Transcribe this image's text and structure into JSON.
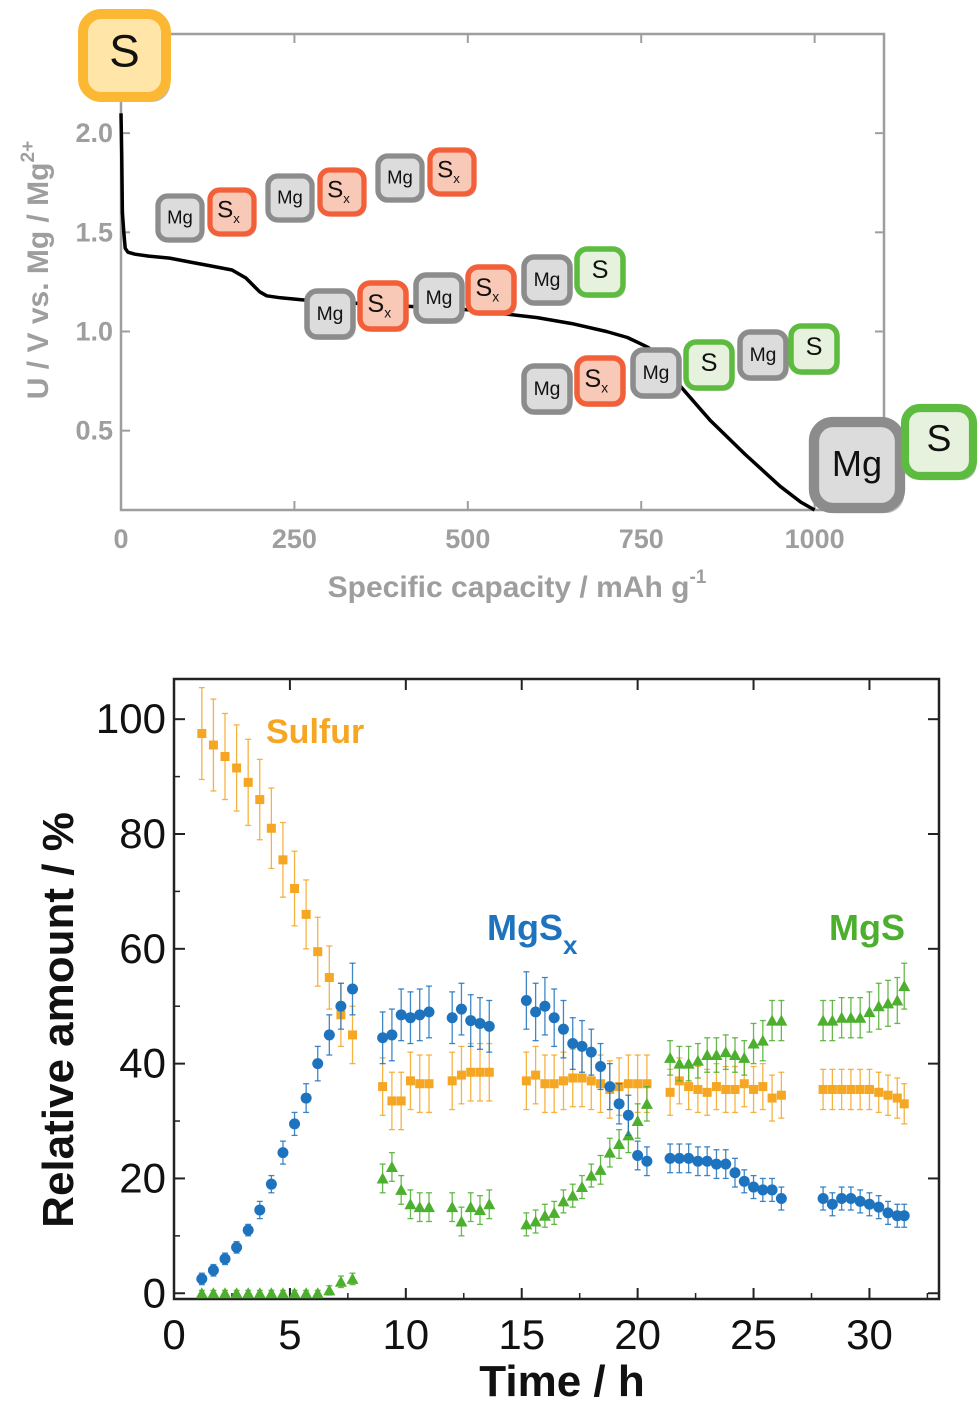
{
  "colors": {
    "sulfur": "#F5A623",
    "mgsx": "#1E73BE",
    "mgs": "#4CAF2E",
    "mg_tile": "#9A9A9A",
    "sx_tile": "#F2603A",
    "s_tile_green": "#5DBB3F",
    "s_tile_orange": "#FDB833",
    "axis_grey": "#9E9E9E"
  },
  "icons": {
    "start_S": "S",
    "end_Mg": "Mg",
    "end_S": "S",
    "mg": "Mg",
    "s": "S",
    "sx_main": "S",
    "sx_sub": "x"
  },
  "chart_data": [
    {
      "type": "line",
      "xlabel_main": "Specific capacity / mAh g",
      "xlabel_sup": "-1",
      "ylabel_main": "U / V vs. Mg / Mg",
      "ylabel_sup": "2+",
      "xlim": [
        0,
        1100
      ],
      "ylim": [
        0.1,
        2.5
      ],
      "xticks": [
        "0",
        "250",
        "500",
        "750",
        "1000"
      ],
      "yticks": [
        "0.5",
        "1.0",
        "1.5",
        "2.0"
      ],
      "series": [
        {
          "x": [
            0,
            1,
            2,
            4,
            6,
            10,
            20,
            40,
            70,
            100,
            130,
            160,
            180,
            200,
            210,
            230,
            260,
            300,
            350,
            400,
            450,
            500,
            550,
            600,
            650,
            700,
            730,
            760,
            780,
            800,
            850,
            900,
            950,
            980,
            1000
          ],
          "y": [
            2.1,
            1.9,
            1.6,
            1.5,
            1.42,
            1.4,
            1.39,
            1.38,
            1.37,
            1.35,
            1.33,
            1.31,
            1.27,
            1.2,
            1.18,
            1.17,
            1.16,
            1.15,
            1.14,
            1.13,
            1.12,
            1.11,
            1.09,
            1.07,
            1.04,
            1.0,
            0.97,
            0.92,
            0.85,
            0.75,
            0.55,
            0.38,
            0.22,
            0.14,
            0.1
          ]
        }
      ]
    },
    {
      "type": "scatter",
      "xlabel": "Time / h",
      "ylabel": "Relative amount / %",
      "xlim": [
        0,
        33
      ],
      "ylim": [
        -1,
        107
      ],
      "xticks": [
        "0",
        "5",
        "10",
        "15",
        "20",
        "25",
        "30"
      ],
      "yticks": [
        "0",
        "20",
        "40",
        "60",
        "80",
        "100"
      ],
      "series": [
        {
          "name": "Sulfur",
          "x": [
            1.2,
            1.7,
            2.2,
            2.7,
            3.2,
            3.7,
            4.2,
            4.7,
            5.2,
            5.7,
            6.2,
            6.7,
            7.2,
            7.7,
            9.0,
            9.4,
            9.8,
            10.2,
            10.6,
            11.0,
            12.0,
            12.4,
            12.8,
            13.2,
            13.6,
            15.2,
            15.6,
            16.0,
            16.4,
            16.8,
            17.2,
            17.6,
            18.0,
            18.4,
            18.8,
            19.2,
            19.6,
            20.0,
            20.4,
            21.4,
            21.8,
            22.2,
            22.6,
            23.0,
            23.4,
            23.8,
            24.2,
            24.6,
            25.0,
            25.4,
            25.8,
            26.2,
            28.0,
            28.4,
            28.8,
            29.2,
            29.6,
            30.0,
            30.4,
            30.8,
            31.2,
            31.5
          ],
          "y": [
            97.5,
            95.5,
            93.5,
            91.5,
            89,
            86,
            81,
            75.5,
            70.5,
            66,
            59.5,
            55,
            48.5,
            45,
            36,
            33.5,
            33.5,
            37,
            36.5,
            36.5,
            37,
            38,
            38.5,
            38.5,
            38.5,
            37,
            38,
            36.5,
            36.5,
            37,
            37.5,
            37.5,
            37,
            36.5,
            35.5,
            36,
            36.5,
            36.5,
            36.5,
            35,
            37,
            36,
            35.5,
            35,
            36,
            35.5,
            35.5,
            36.5,
            35.5,
            36,
            34,
            34.5,
            35.5,
            35.5,
            35.5,
            35.5,
            35.5,
            35.5,
            35,
            34.5,
            34,
            33
          ],
          "yerr": [
            8,
            8,
            7.5,
            7.5,
            7.5,
            7,
            7,
            6.5,
            6.5,
            6,
            6,
            5.5,
            5.5,
            5,
            5,
            5,
            5,
            5,
            5,
            5,
            5,
            5,
            5,
            5,
            5,
            5,
            5,
            5,
            5,
            5,
            5,
            5,
            5,
            5,
            5,
            5,
            5,
            5,
            5,
            4,
            4,
            4,
            4,
            4,
            4,
            4,
            4,
            4,
            4,
            4,
            4,
            4,
            3.5,
            3.5,
            3.5,
            3.5,
            3.5,
            3.5,
            3.5,
            3.5,
            3.5,
            3.5
          ]
        },
        {
          "name": "MgS",
          "x": [
            1.2,
            1.7,
            2.2,
            2.7,
            3.2,
            3.7,
            4.2,
            4.7,
            5.2,
            5.7,
            6.2,
            6.7,
            7.2,
            7.7,
            9.0,
            9.4,
            9.8,
            10.2,
            10.6,
            11.0,
            12.0,
            12.4,
            12.8,
            13.2,
            13.6,
            15.2,
            15.6,
            16.0,
            16.4,
            16.8,
            17.2,
            17.6,
            18.0,
            18.4,
            18.8,
            19.2,
            19.6,
            20.0,
            20.4,
            21.4,
            21.8,
            22.2,
            22.6,
            23.0,
            23.4,
            23.8,
            24.2,
            24.6,
            25.0,
            25.4,
            25.8,
            26.2,
            28.0,
            28.4,
            28.8,
            29.2,
            29.6,
            30.0,
            30.4,
            30.8,
            31.2,
            31.5
          ],
          "y": [
            0,
            0,
            0,
            0,
            0,
            0,
            0,
            0,
            0,
            0,
            0,
            0.5,
            2,
            2.5,
            20,
            22,
            18,
            15.5,
            15,
            15,
            15,
            12.5,
            15,
            14.5,
            15.5,
            12,
            12.5,
            13.5,
            14,
            16,
            17,
            18.5,
            20.5,
            21.5,
            24.5,
            26,
            27.5,
            30,
            33,
            41,
            40,
            40,
            40.5,
            41.5,
            41.5,
            42,
            41.5,
            41,
            43.5,
            44,
            47.5,
            47.5,
            47.5,
            47.5,
            48,
            48,
            48,
            49,
            50,
            50.5,
            51,
            53.5
          ],
          "yerr": [
            0.5,
            0.5,
            0.5,
            0.5,
            0.5,
            0.5,
            0.5,
            0.5,
            0.5,
            0.5,
            0.5,
            0.8,
            1,
            1,
            2.5,
            2.5,
            2.5,
            2.5,
            2.5,
            2.5,
            2.5,
            2.5,
            2.5,
            2.5,
            2.5,
            2,
            2,
            2,
            2,
            2,
            2,
            2,
            2,
            2.5,
            2.5,
            2.5,
            3,
            3,
            3,
            3,
            3,
            3,
            3,
            3,
            3,
            3,
            3,
            3,
            3.5,
            3.5,
            3.5,
            3.5,
            3.5,
            3.5,
            3.5,
            3.5,
            3.5,
            3.5,
            4,
            4,
            4,
            4
          ]
        },
        {
          "name": "MgSx",
          "x": [
            1.2,
            1.7,
            2.2,
            2.7,
            3.2,
            3.7,
            4.2,
            4.7,
            5.2,
            5.7,
            6.2,
            6.7,
            7.2,
            7.7,
            9.0,
            9.4,
            9.8,
            10.2,
            10.6,
            11.0,
            12.0,
            12.4,
            12.8,
            13.2,
            13.6,
            15.2,
            15.6,
            16.0,
            16.4,
            16.8,
            17.2,
            17.6,
            18.0,
            18.4,
            18.8,
            19.2,
            19.6,
            20.0,
            20.4,
            21.4,
            21.8,
            22.2,
            22.6,
            23.0,
            23.4,
            23.8,
            24.2,
            24.6,
            25.0,
            25.4,
            25.8,
            26.2,
            28.0,
            28.4,
            28.8,
            29.2,
            29.6,
            30.0,
            30.4,
            30.8,
            31.2,
            31.5
          ],
          "y": [
            2.5,
            4,
            6,
            8,
            11,
            14.5,
            19,
            24.5,
            29.5,
            34,
            40,
            45,
            50,
            53,
            44.5,
            45,
            48.5,
            48,
            48.5,
            49,
            48,
            49.5,
            47.5,
            47,
            46.5,
            51,
            49,
            50,
            48,
            46,
            43.5,
            43,
            42,
            39.5,
            36,
            33,
            31,
            24,
            23,
            23.5,
            23.5,
            23.5,
            23,
            23,
            22.5,
            22.5,
            21,
            19.5,
            18.5,
            18,
            18,
            16.5,
            16.5,
            15.5,
            16.5,
            16.5,
            16,
            15.5,
            15,
            14,
            13.5,
            13.5
          ],
          "yerr": [
            1,
            1,
            1,
            1,
            1,
            1.5,
            1.5,
            2,
            2,
            2.5,
            3,
            3.5,
            4,
            4.5,
            4.5,
            4.5,
            4.5,
            4.5,
            4.5,
            4.5,
            4.5,
            4.5,
            4.5,
            4.5,
            4.5,
            5,
            5,
            5,
            5,
            5,
            4.5,
            4.5,
            4,
            4,
            4,
            3.5,
            3.5,
            2.5,
            2.5,
            2.5,
            2.5,
            2.5,
            2.5,
            2.5,
            2.5,
            2.5,
            2.5,
            2,
            2,
            2,
            2,
            2,
            2,
            2,
            2,
            2,
            2,
            2,
            2,
            2,
            2,
            2
          ]
        }
      ],
      "labels": {
        "sulfur": "Sulfur",
        "mgsx_main": "MgS",
        "mgsx_sub": "x",
        "mgs": "MgS"
      }
    }
  ]
}
